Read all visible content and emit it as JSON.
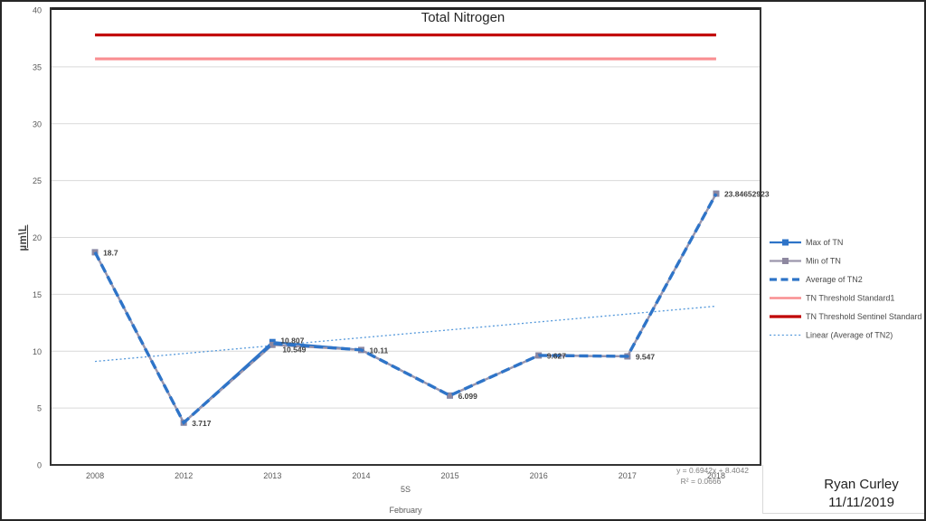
{
  "chart_data": {
    "type": "line",
    "title": "Total Nitrogen",
    "ylabel": "µm\\L",
    "xlabel_levels": [
      "5S",
      "February"
    ],
    "categories": [
      "2008",
      "2012",
      "2013",
      "2014",
      "2015",
      "2016",
      "2017",
      "2018"
    ],
    "ylim": [
      0,
      40
    ],
    "ytick_step": 5,
    "grid": true,
    "legend_position": "right",
    "series": [
      {
        "name": "Max of TN",
        "type": "line",
        "color": "#2E74C8",
        "marker": "square",
        "values": [
          18.7,
          3.717,
          10.807,
          10.11,
          6.099,
          9.627,
          9.547,
          23.84652923
        ]
      },
      {
        "name": "Min of TN",
        "type": "line",
        "color": "#9C96AC",
        "marker": "square",
        "marker_color": "#8E88A0",
        "values": [
          18.7,
          3.717,
          10.549,
          10.11,
          6.099,
          9.627,
          9.547,
          23.84652923
        ]
      },
      {
        "name": "Average of TN2",
        "type": "line",
        "style": "dashed",
        "color": "#2E74C8",
        "values": [
          18.7,
          3.717,
          10.678,
          10.11,
          6.099,
          9.627,
          9.547,
          23.84652923
        ]
      },
      {
        "name": "TN Threshold Standard1",
        "type": "constant",
        "color": "#F98E91",
        "value": 35.7
      },
      {
        "name": "TN Threshold Sentinel Standard",
        "type": "constant",
        "color": "#C00000",
        "value": 37.8
      },
      {
        "name": "Linear (Average of TN2)",
        "type": "trendline",
        "style": "dotted",
        "color": "#5599DB",
        "slope": 0.6942,
        "intercept": 8.4042
      }
    ],
    "data_labels": [
      "18.7",
      "3.717",
      "10.807",
      "10.549",
      "10.11",
      "6.099",
      "9.627",
      "9.547",
      "23.84652923"
    ],
    "trendline_equation": "y = 0.6942x + 8.4042",
    "r_squared": "R² = 0.0666"
  },
  "byline": {
    "name": "Ryan Curley",
    "date": "11/11/2019"
  }
}
